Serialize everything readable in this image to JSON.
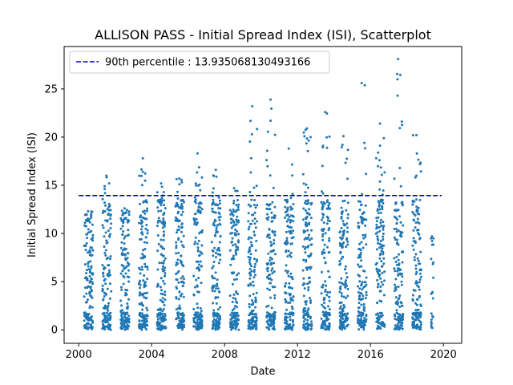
{
  "chart_data": {
    "type": "scatter",
    "title": "ALLISON PASS - Initial Spread Index (ISI), Scatterplot",
    "xlabel": "Date",
    "ylabel": "Initial Spread Index (ISI)",
    "xlim": [
      1999.2,
      2021.0
    ],
    "ylim": [
      -1.4,
      29.4
    ],
    "x_ticks": [
      2000,
      2004,
      2008,
      2012,
      2016,
      2020
    ],
    "y_ticks": [
      0,
      5,
      10,
      15,
      20,
      25
    ],
    "grid": false,
    "legend_position": "top-left",
    "point_color": "#1f77b4",
    "reference_line": {
      "label": "90th percentile : 13.935068130493166",
      "value": 13.935068130493166,
      "x_range": [
        2000.0,
        2019.9
      ],
      "style": "dashed",
      "color": "#0000cc"
    },
    "series": [
      {
        "seasons": [
          {
            "start": 2000.3,
            "end": 2000.78,
            "max": 12.3
          },
          {
            "start": 2001.3,
            "end": 2001.78,
            "max": 16.0
          },
          {
            "start": 2002.3,
            "end": 2002.78,
            "max": 12.6
          },
          {
            "start": 2003.3,
            "end": 2003.78,
            "max": 17.8
          },
          {
            "start": 2004.3,
            "end": 2004.78,
            "max": 15.2
          },
          {
            "start": 2005.3,
            "end": 2005.78,
            "max": 15.7
          },
          {
            "start": 2006.3,
            "end": 2006.78,
            "max": 18.3
          },
          {
            "start": 2007.3,
            "end": 2007.78,
            "max": 16.6
          },
          {
            "start": 2008.3,
            "end": 2008.78,
            "max": 14.7
          },
          {
            "start": 2009.3,
            "end": 2009.78,
            "max": 23.2
          },
          {
            "start": 2010.3,
            "end": 2010.78,
            "max": 23.9
          },
          {
            "start": 2011.3,
            "end": 2011.78,
            "max": 18.8
          },
          {
            "start": 2012.3,
            "end": 2012.78,
            "max": 20.9
          },
          {
            "start": 2013.3,
            "end": 2013.78,
            "max": 22.6
          },
          {
            "start": 2014.3,
            "end": 2014.78,
            "max": 20.1
          },
          {
            "start": 2015.3,
            "end": 2015.78,
            "max": 25.6
          },
          {
            "start": 2016.3,
            "end": 2016.78,
            "max": 21.4
          },
          {
            "start": 2017.3,
            "end": 2017.78,
            "max": 28.1
          },
          {
            "start": 2018.3,
            "end": 2018.78,
            "max": 20.2
          },
          {
            "start": 2019.3,
            "end": 2019.45,
            "max": 9.7
          }
        ]
      }
    ]
  }
}
